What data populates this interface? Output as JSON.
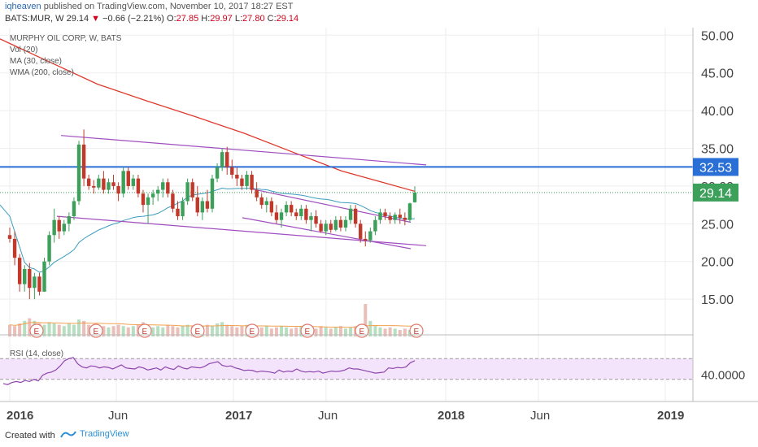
{
  "header": {
    "author": "iqheaven",
    "published_text": "published on TradingView.com, November 10, 2017 18:27 EST",
    "symbol": "BATS:MUR, W",
    "last": "29.14",
    "change_arrow": "▼",
    "change": "−0.66 (−2.21%)",
    "o_label": "O:",
    "o": "27.85",
    "h_label": "H:",
    "h": "29.97",
    "l_label": "L:",
    "l": "27.80",
    "c_label": "C:",
    "c": "29.14"
  },
  "footer": {
    "created_label": "Created with",
    "brand": "TradingView"
  },
  "colors": {
    "up": "#3c9f5a",
    "down": "#c0392b",
    "wma": "#e0392b",
    "ma": "#3a9dbf",
    "channel": "#a04fc0",
    "resistance": "#2a6fd6",
    "rsi_line": "#8e44ad",
    "rsi_bg": "#f3e4fb",
    "vol_ma": "#f2a14d"
  },
  "chart_data": {
    "type": "candlestick",
    "title": "MURPHY OIL CORP, W, BATS",
    "legend": [
      "Vol (20)",
      "MA (30, close)",
      "WMA (200, close)"
    ],
    "x_ticks": [
      "2016",
      "Jun",
      "2017",
      "Jun",
      "2018",
      "Jun",
      "2019"
    ],
    "y_ticks": [
      "50.00",
      "45.00",
      "40.00",
      "35.00",
      "30.00",
      "25.00",
      "20.00",
      "15.00"
    ],
    "ylim": [
      12,
      51
    ],
    "resistance_label": "32.53",
    "resistance": 32.53,
    "price_label": "29.14",
    "price": 29.14,
    "rsi": {
      "label": "RSI (14, close)",
      "tick": "40.0000",
      "upper": 70,
      "lower": 30,
      "values": [
        22,
        20,
        24,
        26,
        24,
        28,
        26,
        30,
        27,
        38,
        42,
        44,
        48,
        56,
        66,
        70,
        72,
        60,
        54,
        52,
        56,
        55,
        52,
        54,
        53,
        50,
        54,
        58,
        52,
        51,
        50,
        54,
        52,
        48,
        50,
        52,
        48,
        54,
        51,
        49,
        56,
        52,
        50,
        54,
        53,
        52,
        55,
        60,
        62,
        64,
        57,
        55,
        56,
        52,
        50,
        47,
        48,
        47,
        44,
        46,
        45,
        44,
        42,
        48,
        44,
        46,
        45,
        50,
        46,
        44,
        45,
        44,
        46,
        42,
        44,
        46,
        45,
        46,
        48,
        52,
        50,
        50,
        48,
        46,
        44,
        42,
        43,
        44,
        52,
        51,
        53,
        52,
        54,
        62,
        66
      ]
    },
    "candles": [
      {
        "o": 23.5,
        "h": 24.5,
        "l": 22.5,
        "c": 23.0
      },
      {
        "o": 23.0,
        "h": 24.0,
        "l": 19.5,
        "c": 20.5
      },
      {
        "o": 20.5,
        "h": 21.0,
        "l": 16.0,
        "c": 17.0
      },
      {
        "o": 17.0,
        "h": 19.5,
        "l": 16.0,
        "c": 19.0
      },
      {
        "o": 19.0,
        "h": 19.8,
        "l": 15.0,
        "c": 16.5
      },
      {
        "o": 16.5,
        "h": 18.5,
        "l": 15.0,
        "c": 18.0
      },
      {
        "o": 18.0,
        "h": 18.5,
        "l": 15.5,
        "c": 16.0
      },
      {
        "o": 16.0,
        "h": 20.5,
        "l": 16.0,
        "c": 20.0
      },
      {
        "o": 20.0,
        "h": 24.0,
        "l": 19.5,
        "c": 23.5
      },
      {
        "o": 23.5,
        "h": 27.0,
        "l": 22.5,
        "c": 25.5
      },
      {
        "o": 25.5,
        "h": 26.0,
        "l": 23.0,
        "c": 24.0
      },
      {
        "o": 24.0,
        "h": 25.5,
        "l": 23.5,
        "c": 25.0
      },
      {
        "o": 25.0,
        "h": 26.5,
        "l": 24.0,
        "c": 26.0
      },
      {
        "o": 26.0,
        "h": 28.5,
        "l": 25.5,
        "c": 28.0
      },
      {
        "o": 28.0,
        "h": 36.0,
        "l": 27.5,
        "c": 35.5
      },
      {
        "o": 35.5,
        "h": 37.5,
        "l": 30.0,
        "c": 31.0
      },
      {
        "o": 31.0,
        "h": 31.5,
        "l": 29.5,
        "c": 30.0
      },
      {
        "o": 30.0,
        "h": 30.8,
        "l": 29.0,
        "c": 29.8
      },
      {
        "o": 29.8,
        "h": 31.5,
        "l": 29.5,
        "c": 31.0
      },
      {
        "o": 31.0,
        "h": 32.0,
        "l": 29.0,
        "c": 29.5
      },
      {
        "o": 29.5,
        "h": 31.0,
        "l": 29.0,
        "c": 30.5
      },
      {
        "o": 30.5,
        "h": 31.5,
        "l": 29.5,
        "c": 30.0
      },
      {
        "o": 30.0,
        "h": 30.5,
        "l": 28.0,
        "c": 29.0
      },
      {
        "o": 29.0,
        "h": 32.5,
        "l": 28.5,
        "c": 32.0
      },
      {
        "o": 32.0,
        "h": 32.5,
        "l": 29.5,
        "c": 30.0
      },
      {
        "o": 30.0,
        "h": 31.5,
        "l": 29.5,
        "c": 31.0
      },
      {
        "o": 31.0,
        "h": 31.5,
        "l": 28.5,
        "c": 29.0
      },
      {
        "o": 29.0,
        "h": 29.5,
        "l": 26.5,
        "c": 27.5
      },
      {
        "o": 27.5,
        "h": 29.0,
        "l": 25.0,
        "c": 28.5
      },
      {
        "o": 28.5,
        "h": 29.5,
        "l": 27.5,
        "c": 29.0
      },
      {
        "o": 29.0,
        "h": 30.0,
        "l": 28.0,
        "c": 29.5
      },
      {
        "o": 29.5,
        "h": 31.0,
        "l": 28.5,
        "c": 30.5
      },
      {
        "o": 30.5,
        "h": 31.0,
        "l": 28.5,
        "c": 29.0
      },
      {
        "o": 29.0,
        "h": 29.5,
        "l": 26.5,
        "c": 27.0
      },
      {
        "o": 27.0,
        "h": 28.0,
        "l": 25.5,
        "c": 26.0
      },
      {
        "o": 26.0,
        "h": 28.5,
        "l": 25.5,
        "c": 28.0
      },
      {
        "o": 28.0,
        "h": 31.0,
        "l": 27.5,
        "c": 30.5
      },
      {
        "o": 30.5,
        "h": 31.0,
        "l": 28.0,
        "c": 28.5
      },
      {
        "o": 28.5,
        "h": 30.0,
        "l": 26.0,
        "c": 26.5
      },
      {
        "o": 26.5,
        "h": 28.5,
        "l": 25.5,
        "c": 28.0
      },
      {
        "o": 28.0,
        "h": 29.5,
        "l": 26.5,
        "c": 27.0
      },
      {
        "o": 27.0,
        "h": 31.5,
        "l": 26.5,
        "c": 31.0
      },
      {
        "o": 31.0,
        "h": 33.0,
        "l": 30.5,
        "c": 32.5
      },
      {
        "o": 32.5,
        "h": 35.0,
        "l": 32.0,
        "c": 34.5
      },
      {
        "o": 34.5,
        "h": 35.2,
        "l": 31.5,
        "c": 32.5
      },
      {
        "o": 32.5,
        "h": 33.5,
        "l": 31.0,
        "c": 31.5
      },
      {
        "o": 31.5,
        "h": 32.5,
        "l": 30.0,
        "c": 31.0
      },
      {
        "o": 31.0,
        "h": 31.5,
        "l": 29.5,
        "c": 30.0
      },
      {
        "o": 30.0,
        "h": 32.0,
        "l": 29.5,
        "c": 31.5
      },
      {
        "o": 31.5,
        "h": 32.0,
        "l": 29.0,
        "c": 29.5
      },
      {
        "o": 29.5,
        "h": 30.5,
        "l": 28.0,
        "c": 28.5
      },
      {
        "o": 28.5,
        "h": 29.0,
        "l": 27.0,
        "c": 27.5
      },
      {
        "o": 27.5,
        "h": 28.5,
        "l": 26.5,
        "c": 28.0
      },
      {
        "o": 28.0,
        "h": 28.5,
        "l": 26.0,
        "c": 26.5
      },
      {
        "o": 26.5,
        "h": 27.5,
        "l": 25.0,
        "c": 25.5
      },
      {
        "o": 25.5,
        "h": 27.0,
        "l": 24.5,
        "c": 26.5
      },
      {
        "o": 26.5,
        "h": 28.0,
        "l": 26.0,
        "c": 27.5
      },
      {
        "o": 27.5,
        "h": 28.0,
        "l": 26.0,
        "c": 26.5
      },
      {
        "o": 26.5,
        "h": 27.0,
        "l": 25.5,
        "c": 26.0
      },
      {
        "o": 26.0,
        "h": 27.5,
        "l": 25.5,
        "c": 27.0
      },
      {
        "o": 27.0,
        "h": 27.5,
        "l": 25.0,
        "c": 25.5
      },
      {
        "o": 25.5,
        "h": 26.5,
        "l": 24.0,
        "c": 26.0
      },
      {
        "o": 26.0,
        "h": 26.8,
        "l": 24.5,
        "c": 25.0
      },
      {
        "o": 25.0,
        "h": 25.5,
        "l": 23.8,
        "c": 24.0
      },
      {
        "o": 24.0,
        "h": 25.5,
        "l": 23.5,
        "c": 25.0
      },
      {
        "o": 25.0,
        "h": 25.5,
        "l": 23.8,
        "c": 24.2
      },
      {
        "o": 24.2,
        "h": 26.0,
        "l": 24.0,
        "c": 25.5
      },
      {
        "o": 25.5,
        "h": 26.0,
        "l": 24.0,
        "c": 24.5
      },
      {
        "o": 24.5,
        "h": 26.0,
        "l": 24.0,
        "c": 25.5
      },
      {
        "o": 25.5,
        "h": 27.5,
        "l": 25.0,
        "c": 27.0
      },
      {
        "o": 27.0,
        "h": 27.5,
        "l": 24.5,
        "c": 25.0
      },
      {
        "o": 25.0,
        "h": 25.5,
        "l": 22.5,
        "c": 23.0
      },
      {
        "o": 23.0,
        "h": 24.0,
        "l": 22.0,
        "c": 22.8
      },
      {
        "o": 22.8,
        "h": 24.5,
        "l": 22.5,
        "c": 24.0
      },
      {
        "o": 24.0,
        "h": 26.0,
        "l": 23.5,
        "c": 25.5
      },
      {
        "o": 25.5,
        "h": 27.0,
        "l": 25.0,
        "c": 26.5
      },
      {
        "o": 26.5,
        "h": 27.0,
        "l": 25.5,
        "c": 26.0
      },
      {
        "o": 26.0,
        "h": 26.5,
        "l": 25.0,
        "c": 25.5
      },
      {
        "o": 25.5,
        "h": 26.5,
        "l": 25.0,
        "c": 26.2
      },
      {
        "o": 26.2,
        "h": 27.0,
        "l": 25.0,
        "c": 25.8
      },
      {
        "o": 25.8,
        "h": 26.5,
        "l": 24.8,
        "c": 25.5
      },
      {
        "o": 25.5,
        "h": 27.8,
        "l": 25.2,
        "c": 27.7
      },
      {
        "o": 27.85,
        "h": 29.97,
        "l": 27.8,
        "c": 29.14
      }
    ],
    "volume": [
      9,
      8,
      10,
      12,
      14,
      12,
      10,
      9,
      11,
      10,
      9,
      8,
      10,
      9,
      13,
      12,
      9,
      8,
      9,
      8,
      7,
      8,
      9,
      8,
      7,
      8,
      9,
      11,
      8,
      7,
      8,
      7,
      9,
      8,
      7,
      8,
      9,
      8,
      7,
      8,
      9,
      8,
      10,
      11,
      9,
      8,
      7,
      8,
      9,
      7,
      6,
      7,
      8,
      6,
      7,
      8,
      7,
      6,
      7,
      8,
      9,
      7,
      6,
      8,
      7,
      6,
      7,
      8,
      6,
      7,
      8,
      9,
      25,
      12,
      8,
      7,
      6,
      7,
      6,
      5,
      6,
      5,
      6
    ],
    "earnings_markers": [
      "E",
      "E",
      "E",
      "E",
      "E",
      "E",
      "E",
      "E"
    ]
  }
}
